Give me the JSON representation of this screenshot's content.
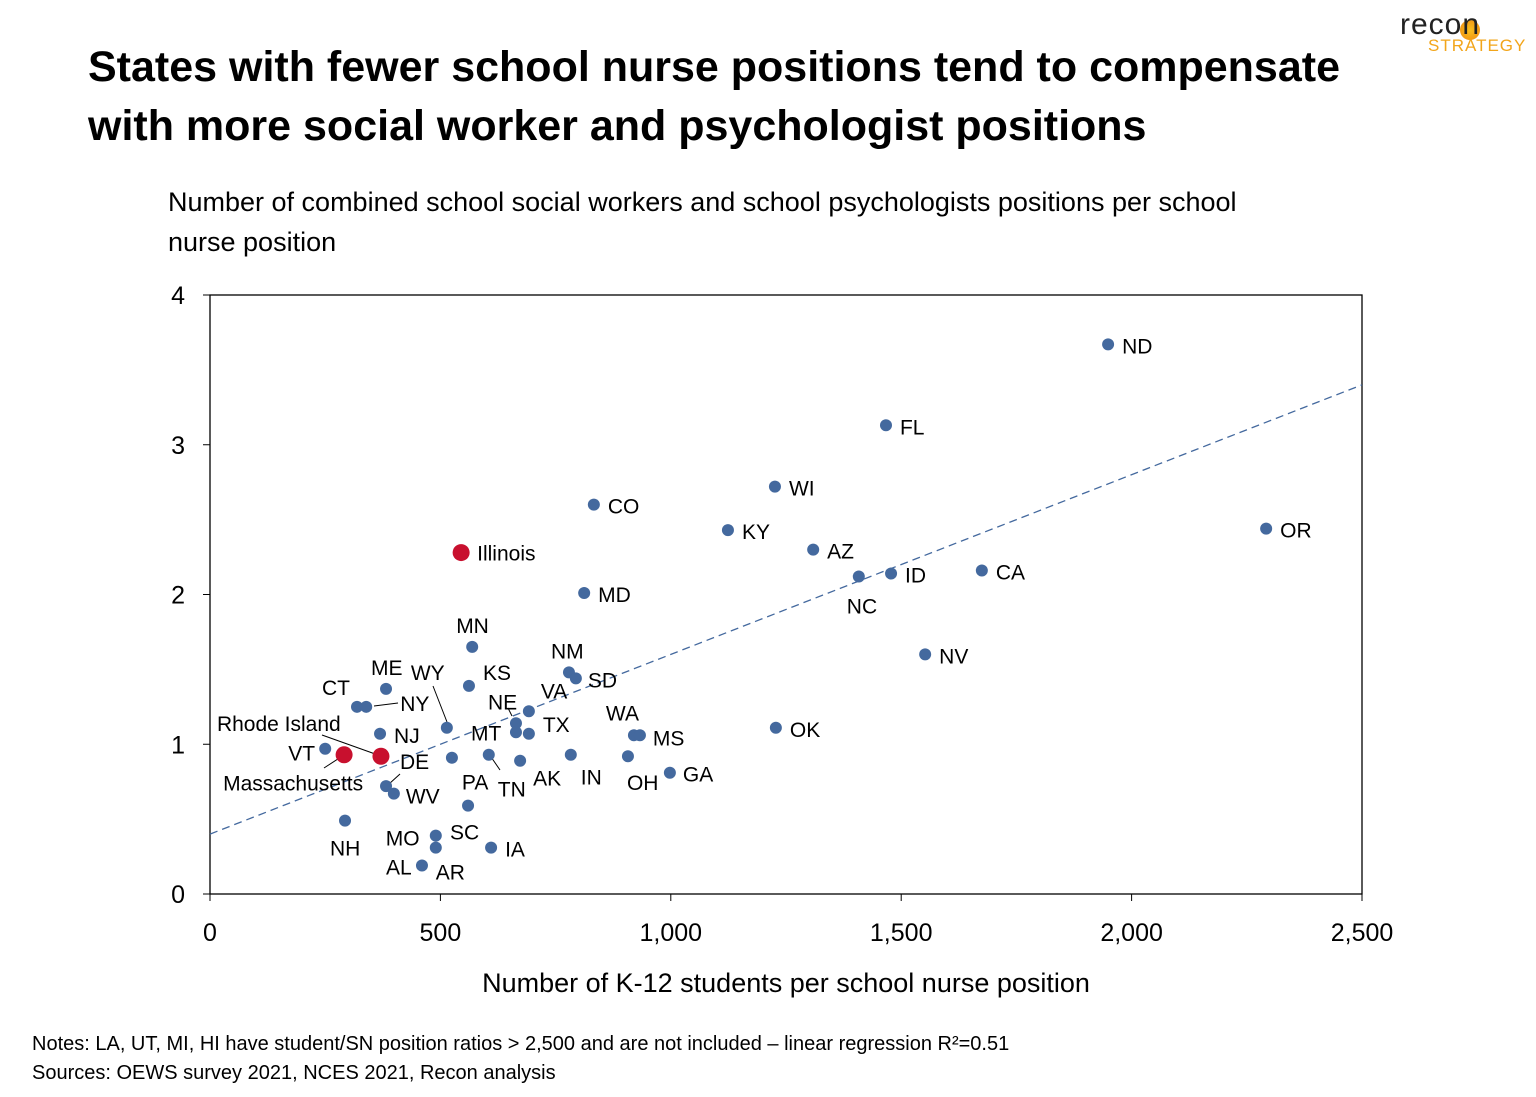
{
  "title": "States with fewer school nurse positions tend to compensate with more social worker and psychologist positions",
  "logo": {
    "word1": "recon",
    "word2": "STRATEGY"
  },
  "notes": [
    "Notes: LA, UT, MI, HI have student/SN position ratios > 2,500 and are not included – linear regression R²=0.51",
    "Sources: OEWS survey 2021, NCES 2021, Recon analysis"
  ],
  "chart_data": {
    "type": "scatter",
    "ylabel": "Number of combined school social workers and school psychologists positions per school nurse position",
    "xlabel": "Number of K-12 students per school nurse position",
    "xlim": [
      0,
      2500
    ],
    "ylim": [
      0,
      4
    ],
    "xticks": [
      "0",
      "500",
      "1,000",
      "1,500",
      "2,000",
      "2,500"
    ],
    "yticks": [
      "0",
      "1",
      "2",
      "3",
      "4"
    ],
    "grid": false,
    "colors": {
      "default": "#44699e",
      "highlight": "#c8102e",
      "trend": "#44699e"
    },
    "trendline": {
      "x": [
        0,
        2500
      ],
      "y": [
        0.4,
        3.4
      ],
      "style": "dashed"
    },
    "points": [
      {
        "label": "ND",
        "x": 1949,
        "y": 3.67
      },
      {
        "label": "FL",
        "x": 1467,
        "y": 3.13
      },
      {
        "label": "WI",
        "x": 1226,
        "y": 2.72
      },
      {
        "label": "CO",
        "x": 833,
        "y": 2.6
      },
      {
        "label": "KY",
        "x": 1124,
        "y": 2.43
      },
      {
        "label": "OR",
        "x": 2292,
        "y": 2.44
      },
      {
        "label": "AZ",
        "x": 1309,
        "y": 2.3
      },
      {
        "label": "Illinois",
        "x": 545,
        "y": 2.28,
        "highlight": true
      },
      {
        "label": "CA",
        "x": 1675,
        "y": 2.16
      },
      {
        "label": "ID",
        "x": 1478,
        "y": 2.14
      },
      {
        "label": "NC",
        "x": 1408,
        "y": 2.12
      },
      {
        "label": "MD",
        "x": 812,
        "y": 2.01
      },
      {
        "label": "MN",
        "x": 569,
        "y": 1.65
      },
      {
        "label": "NV",
        "x": 1552,
        "y": 1.6
      },
      {
        "label": "NM",
        "x": 779,
        "y": 1.48
      },
      {
        "label": "SD",
        "x": 794,
        "y": 1.44
      },
      {
        "label": "KS",
        "x": 562,
        "y": 1.39
      },
      {
        "label": "ME",
        "x": 382,
        "y": 1.37
      },
      {
        "label": "CT",
        "x": 319,
        "y": 1.25
      },
      {
        "label": "NY",
        "x": 339,
        "y": 1.25
      },
      {
        "label": "VA",
        "x": 692,
        "y": 1.22
      },
      {
        "label": "NE",
        "x": 664,
        "y": 1.14
      },
      {
        "label": "WY",
        "x": 514,
        "y": 1.11
      },
      {
        "label": "OK",
        "x": 1228,
        "y": 1.11
      },
      {
        "label": "MT",
        "x": 664,
        "y": 1.08
      },
      {
        "label": "TX",
        "x": 692,
        "y": 1.07
      },
      {
        "label": "NJ",
        "x": 369,
        "y": 1.07
      },
      {
        "label": "WA",
        "x": 920,
        "y": 1.06
      },
      {
        "label": "MS",
        "x": 933,
        "y": 1.06
      },
      {
        "label": "VT",
        "x": 250,
        "y": 0.97
      },
      {
        "label": "Massachusetts",
        "x": 291,
        "y": 0.93,
        "highlight": true
      },
      {
        "label": "Rhode Island",
        "x": 371,
        "y": 0.92,
        "highlight": true
      },
      {
        "label": "PA",
        "x": 525,
        "y": 0.91
      },
      {
        "label": "TN",
        "x": 605,
        "y": 0.93
      },
      {
        "label": "AK",
        "x": 673,
        "y": 0.89
      },
      {
        "label": "IN",
        "x": 783,
        "y": 0.93
      },
      {
        "label": "OH",
        "x": 907,
        "y": 0.92
      },
      {
        "label": "GA",
        "x": 998,
        "y": 0.81
      },
      {
        "label": "DE",
        "x": 382,
        "y": 0.72
      },
      {
        "label": "WV",
        "x": 399,
        "y": 0.67
      },
      {
        "label": "SC",
        "x": 560,
        "y": 0.59
      },
      {
        "label": "NH",
        "x": 293,
        "y": 0.49
      },
      {
        "label": "MO",
        "x": 490,
        "y": 0.39
      },
      {
        "label": "AR",
        "x": 490,
        "y": 0.31
      },
      {
        "label": "IA",
        "x": 610,
        "y": 0.31
      },
      {
        "label": "AL",
        "x": 460,
        "y": 0.19
      }
    ]
  }
}
